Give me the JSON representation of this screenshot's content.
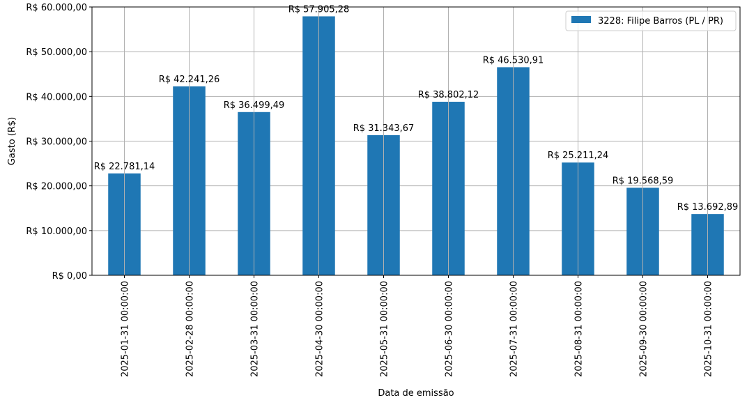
{
  "chart_data": {
    "type": "bar",
    "title": "",
    "xlabel": "Data de emissão",
    "ylabel": "Gasto (R$)",
    "ylim": [
      0,
      60000
    ],
    "y_ticks": [
      0,
      10000,
      20000,
      30000,
      40000,
      50000,
      60000
    ],
    "y_tick_labels": [
      "R$ 0,00",
      "R$ 10.000,00",
      "R$ 20.000,00",
      "R$ 30.000,00",
      "R$ 40.000,00",
      "R$ 50.000,00",
      "R$ 60.000,00"
    ],
    "grid": true,
    "legend_position": "top-right",
    "categories": [
      "2025-01-31 00:00:00",
      "2025-02-28 00:00:00",
      "2025-03-31 00:00:00",
      "2025-04-30 00:00:00",
      "2025-05-31 00:00:00",
      "2025-06-30 00:00:00",
      "2025-07-31 00:00:00",
      "2025-08-31 00:00:00",
      "2025-09-30 00:00:00",
      "2025-10-31 00:00:00"
    ],
    "series": [
      {
        "name": "3228: Filipe Barros (PL / PR)",
        "color": "#1f77b4",
        "values": [
          22781.14,
          42241.26,
          36499.49,
          57905.28,
          31343.67,
          38802.12,
          46530.91,
          25211.24,
          19568.59,
          13692.89
        ],
        "data_labels": [
          "R$ 22.781,14",
          "R$ 42.241,26",
          "R$ 36.499,49",
          "R$ 57.905,28",
          "R$ 31.343,67",
          "R$ 38.802,12",
          "R$ 46.530,91",
          "R$ 25.211,24",
          "R$ 19.568,59",
          "R$ 13.692,89"
        ]
      }
    ]
  }
}
